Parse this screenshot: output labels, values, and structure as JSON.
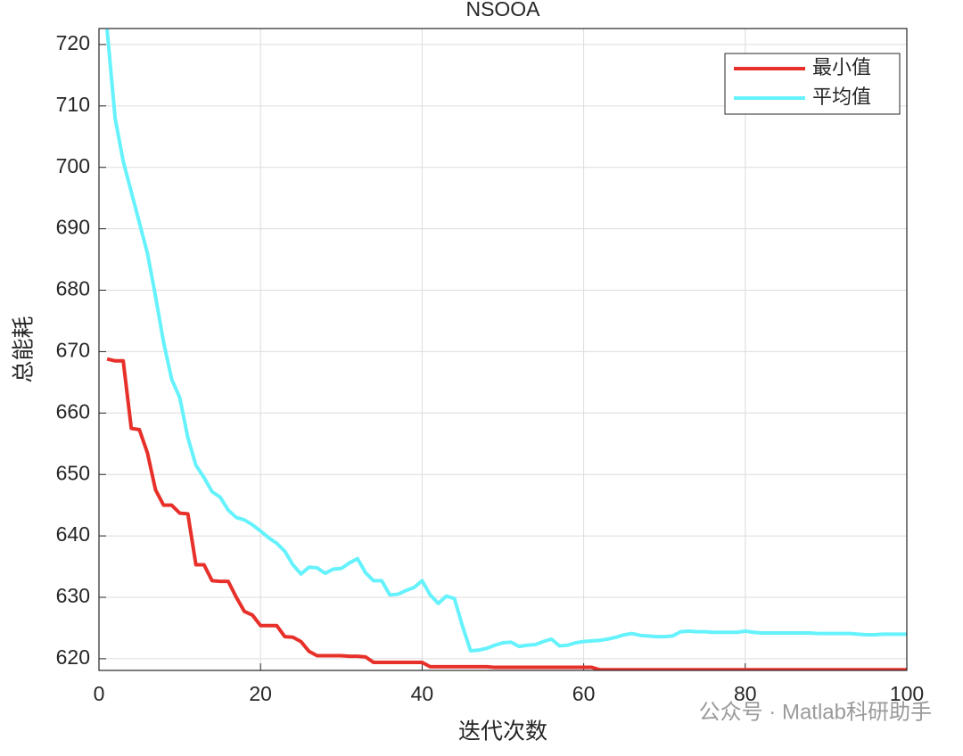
{
  "chart_data": {
    "type": "line",
    "title": "NSOOA",
    "xlabel": "迭代次数",
    "ylabel": "总能耗",
    "watermark": "公众号 · Matlab科研助手",
    "x": [
      1,
      2,
      3,
      4,
      5,
      6,
      7,
      8,
      9,
      10,
      11,
      12,
      13,
      14,
      15,
      16,
      17,
      18,
      19,
      20,
      21,
      22,
      23,
      24,
      25,
      26,
      27,
      28,
      29,
      30,
      31,
      32,
      33,
      34,
      35,
      36,
      37,
      38,
      39,
      40,
      41,
      42,
      43,
      44,
      45,
      46,
      47,
      48,
      49,
      50,
      51,
      52,
      53,
      54,
      55,
      56,
      57,
      58,
      59,
      60,
      61,
      62,
      63,
      64,
      65,
      66,
      67,
      68,
      69,
      70,
      71,
      72,
      73,
      74,
      75,
      76,
      77,
      78,
      79,
      80,
      81,
      82,
      83,
      84,
      85,
      86,
      87,
      88,
      89,
      90,
      91,
      92,
      93,
      94,
      95,
      96,
      97,
      98,
      99,
      100
    ],
    "series": [
      {
        "name": "最小值",
        "color": "#e8302a",
        "values": [
          668.8,
          668.5,
          668.5,
          657.5,
          657.3,
          653.5,
          647.5,
          645,
          645,
          643.7,
          643.6,
          635.3,
          635.3,
          632.7,
          632.6,
          632.6,
          630,
          627.7,
          627.1,
          625.4,
          625.4,
          625.4,
          623.6,
          623.5,
          622.8,
          621.2,
          620.5,
          620.5,
          620.5,
          620.5,
          620.4,
          620.4,
          620.3,
          619.4,
          619.4,
          619.4,
          619.4,
          619.4,
          619.4,
          619.4,
          618.7,
          618.7,
          618.7,
          618.7,
          618.7,
          618.7,
          618.7,
          618.7,
          618.6,
          618.6,
          618.6,
          618.6,
          618.6,
          618.6,
          618.6,
          618.6,
          618.6,
          618.6,
          618.6,
          618.6,
          618.6,
          618.2,
          618.2,
          618.2,
          618.2,
          618.2,
          618.2,
          618.2,
          618.2,
          618.2,
          618.2,
          618.2,
          618.2,
          618.2,
          618.2,
          618.2,
          618.2,
          618.2,
          618.2,
          618.2,
          618.2,
          618.2,
          618.2,
          618.2,
          618.2,
          618.2,
          618.2,
          618.2,
          618.2,
          618.2,
          618.2,
          618.2,
          618.2,
          618.2,
          618.2,
          618.2,
          618.2,
          618.2,
          618.2,
          618.2
        ]
      },
      {
        "name": "平均值",
        "color": "#66f2fc",
        "values": [
          722.5,
          708,
          701,
          696,
          691,
          686,
          679,
          671.5,
          665.5,
          662.5,
          656,
          651.5,
          649.5,
          647.2,
          646.3,
          644.2,
          643,
          642.6,
          641.8,
          640.8,
          639.7,
          638.8,
          637.5,
          635.3,
          633.8,
          634.9,
          634.8,
          633.9,
          634.6,
          634.7,
          635.6,
          636.3,
          634,
          632.7,
          632.7,
          630.4,
          630.5,
          631.1,
          631.6,
          632.7,
          630.4,
          629,
          630.2,
          629.8,
          625.3,
          621.3,
          621.4,
          621.7,
          622.2,
          622.6,
          622.7,
          622,
          622.2,
          622.3,
          622.8,
          623.2,
          622.1,
          622.2,
          622.6,
          622.8,
          622.9,
          623,
          623.2,
          623.5,
          623.9,
          624.1,
          623.8,
          623.7,
          623.6,
          623.6,
          623.7,
          624.4,
          624.5,
          624.4,
          624.4,
          624.3,
          624.3,
          624.3,
          624.3,
          624.5,
          624.3,
          624.2,
          624.2,
          624.2,
          624.2,
          624.2,
          624.2,
          624.2,
          624.1,
          624.1,
          624.1,
          624.1,
          624.1,
          624,
          623.9,
          623.9,
          624,
          624,
          624,
          624
        ]
      }
    ],
    "xlim": [
      0,
      100
    ],
    "xticks": [
      0,
      20,
      40,
      60,
      80,
      100
    ],
    "ylim": [
      618.1,
      722.6
    ],
    "yticks": [
      620,
      630,
      640,
      650,
      660,
      670,
      680,
      690,
      700,
      710,
      720
    ],
    "grid": true,
    "legend": "upper right"
  }
}
